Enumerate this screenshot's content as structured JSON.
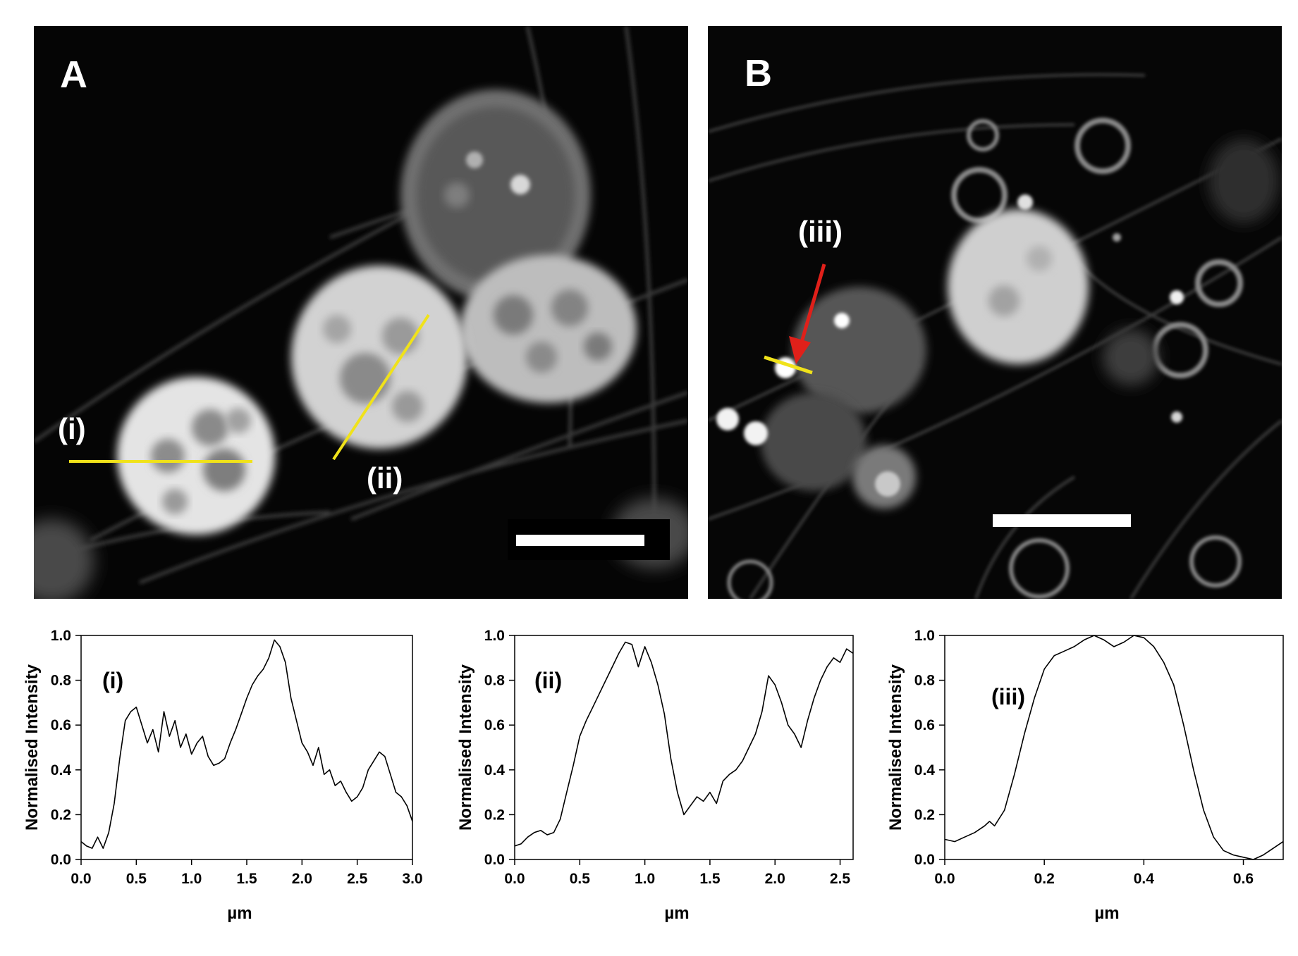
{
  "figure": {
    "panel_a": {
      "letter": "A",
      "line_labels": [
        "(i)",
        "(ii)"
      ],
      "line_color": "#f0e21a"
    },
    "panel_b": {
      "letter": "B",
      "line_labels": [
        "(iii)"
      ],
      "line_color": "#f0e21a",
      "arrow_color": "#e0201a"
    }
  },
  "chart_data": [
    {
      "type": "line",
      "label": "(i)",
      "xlabel": "µm",
      "ylabel": "Normalised Intensity",
      "xlim": [
        0,
        3.0
      ],
      "ylim": [
        0,
        1.0
      ],
      "xticks": [
        "0.0",
        "0.5",
        "1.0",
        "1.5",
        "2.0",
        "2.5",
        "3.0"
      ],
      "yticks": [
        "0.0",
        "0.2",
        "0.4",
        "0.6",
        "0.8",
        "1.0"
      ],
      "x": [
        0.0,
        0.05,
        0.1,
        0.15,
        0.2,
        0.25,
        0.3,
        0.35,
        0.4,
        0.45,
        0.5,
        0.55,
        0.6,
        0.65,
        0.7,
        0.75,
        0.8,
        0.85,
        0.9,
        0.95,
        1.0,
        1.05,
        1.1,
        1.15,
        1.2,
        1.25,
        1.3,
        1.35,
        1.4,
        1.45,
        1.5,
        1.55,
        1.6,
        1.65,
        1.7,
        1.75,
        1.8,
        1.85,
        1.9,
        1.95,
        2.0,
        2.05,
        2.1,
        2.15,
        2.2,
        2.25,
        2.3,
        2.35,
        2.4,
        2.45,
        2.5,
        2.55,
        2.6,
        2.65,
        2.7,
        2.75,
        2.8,
        2.85,
        2.9,
        2.95,
        3.0
      ],
      "y": [
        0.08,
        0.06,
        0.05,
        0.1,
        0.05,
        0.12,
        0.25,
        0.45,
        0.62,
        0.66,
        0.68,
        0.6,
        0.52,
        0.58,
        0.48,
        0.66,
        0.55,
        0.62,
        0.5,
        0.56,
        0.47,
        0.52,
        0.55,
        0.46,
        0.42,
        0.43,
        0.45,
        0.52,
        0.58,
        0.65,
        0.72,
        0.78,
        0.82,
        0.85,
        0.9,
        0.98,
        0.95,
        0.88,
        0.72,
        0.62,
        0.52,
        0.48,
        0.42,
        0.5,
        0.38,
        0.4,
        0.33,
        0.35,
        0.3,
        0.26,
        0.28,
        0.32,
        0.4,
        0.44,
        0.48,
        0.46,
        0.38,
        0.3,
        0.28,
        0.24,
        0.17
      ]
    },
    {
      "type": "line",
      "label": "(ii)",
      "xlabel": "µm",
      "ylabel": "Normalised Intensity",
      "xlim": [
        0,
        2.6
      ],
      "ylim": [
        0,
        1.0
      ],
      "xticks": [
        "0.0",
        "0.5",
        "1.0",
        "1.5",
        "2.0",
        "2.5"
      ],
      "yticks": [
        "0.0",
        "0.2",
        "0.4",
        "0.6",
        "0.8",
        "1.0"
      ],
      "x": [
        0.0,
        0.05,
        0.1,
        0.15,
        0.2,
        0.25,
        0.3,
        0.35,
        0.4,
        0.45,
        0.5,
        0.55,
        0.6,
        0.65,
        0.7,
        0.75,
        0.8,
        0.85,
        0.9,
        0.95,
        1.0,
        1.05,
        1.1,
        1.15,
        1.2,
        1.25,
        1.3,
        1.35,
        1.4,
        1.45,
        1.5,
        1.55,
        1.6,
        1.65,
        1.7,
        1.75,
        1.8,
        1.85,
        1.9,
        1.95,
        2.0,
        2.05,
        2.1,
        2.15,
        2.2,
        2.25,
        2.3,
        2.35,
        2.4,
        2.45,
        2.5,
        2.55,
        2.6
      ],
      "y": [
        0.06,
        0.07,
        0.1,
        0.12,
        0.13,
        0.11,
        0.12,
        0.18,
        0.3,
        0.42,
        0.55,
        0.62,
        0.68,
        0.74,
        0.8,
        0.86,
        0.92,
        0.97,
        0.96,
        0.86,
        0.95,
        0.88,
        0.78,
        0.65,
        0.45,
        0.3,
        0.2,
        0.24,
        0.28,
        0.26,
        0.3,
        0.25,
        0.35,
        0.38,
        0.4,
        0.44,
        0.5,
        0.56,
        0.66,
        0.82,
        0.78,
        0.7,
        0.6,
        0.56,
        0.5,
        0.62,
        0.72,
        0.8,
        0.86,
        0.9,
        0.88,
        0.94,
        0.92
      ]
    },
    {
      "type": "line",
      "label": "(iii)",
      "xlabel": "µm",
      "ylabel": "Normalised Intensity",
      "xlim": [
        0,
        0.68
      ],
      "ylim": [
        0,
        1.0
      ],
      "xticks": [
        "0.0",
        "0.2",
        "0.4",
        "0.6"
      ],
      "yticks": [
        "0.0",
        "0.2",
        "0.4",
        "0.6",
        "0.8",
        "1.0"
      ],
      "x": [
        0.0,
        0.02,
        0.04,
        0.06,
        0.08,
        0.09,
        0.1,
        0.12,
        0.14,
        0.16,
        0.18,
        0.2,
        0.22,
        0.24,
        0.26,
        0.28,
        0.3,
        0.32,
        0.34,
        0.36,
        0.38,
        0.4,
        0.42,
        0.44,
        0.46,
        0.48,
        0.5,
        0.52,
        0.54,
        0.56,
        0.58,
        0.6,
        0.62,
        0.64,
        0.66,
        0.68
      ],
      "y": [
        0.09,
        0.08,
        0.1,
        0.12,
        0.15,
        0.17,
        0.15,
        0.22,
        0.38,
        0.56,
        0.72,
        0.85,
        0.91,
        0.93,
        0.95,
        0.98,
        1.0,
        0.98,
        0.95,
        0.97,
        1.0,
        0.99,
        0.95,
        0.88,
        0.78,
        0.6,
        0.4,
        0.22,
        0.1,
        0.04,
        0.02,
        0.01,
        0.0,
        0.02,
        0.05,
        0.08
      ]
    }
  ]
}
